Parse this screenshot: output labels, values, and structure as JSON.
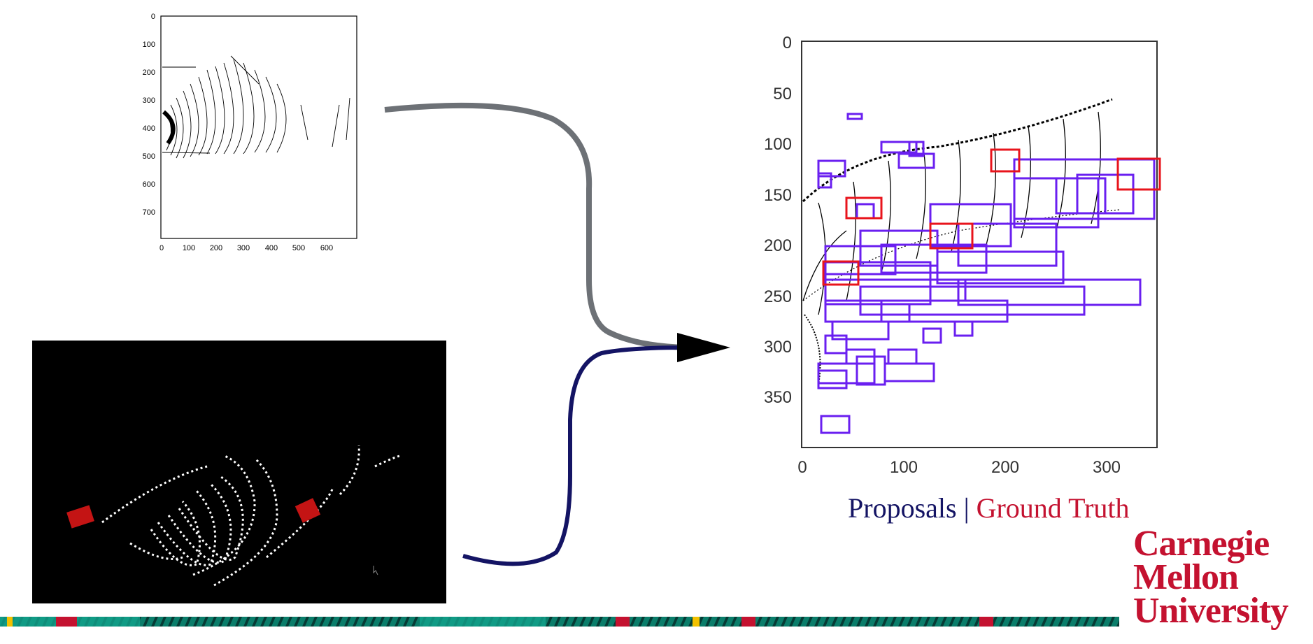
{
  "slide": {
    "legend": {
      "proposals": "Proposals",
      "separator": "|",
      "ground_truth": "Ground Truth"
    },
    "logo": {
      "line1": "Carnegie",
      "line2": "Mellon",
      "line3": "University"
    },
    "colors": {
      "proposal_box": "#6a1ff0",
      "ground_truth_box": "#e8141c",
      "arrow_top": "#6d7176",
      "arrow_bottom": "#141464",
      "brand": "#c41230"
    }
  },
  "small_plot": {
    "xticks": [
      "0",
      "100",
      "200",
      "300",
      "400",
      "500",
      "600"
    ],
    "yticks": [
      "0",
      "100",
      "200",
      "300",
      "400",
      "500",
      "600",
      "700"
    ]
  },
  "big_plot": {
    "xticks": [
      "0",
      "100",
      "200",
      "300"
    ],
    "yticks": [
      "0",
      "50",
      "100",
      "150",
      "200",
      "250",
      "300",
      "350"
    ]
  }
}
